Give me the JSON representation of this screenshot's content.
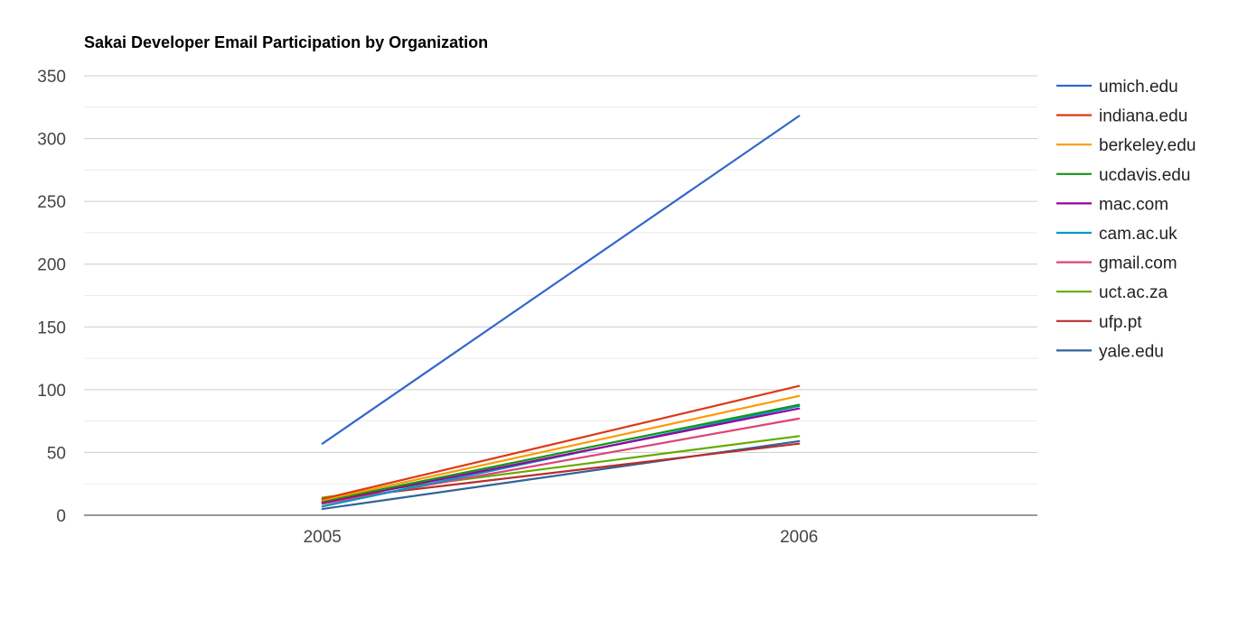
{
  "chart_data": {
    "type": "line",
    "title": "Sakai Developer Email Participation by Organization",
    "xlabel": "",
    "ylabel": "",
    "categories": [
      "2005",
      "2006"
    ],
    "ylim": [
      0,
      350
    ],
    "yticks": [
      0,
      50,
      100,
      150,
      200,
      250,
      300,
      350
    ],
    "grid": true,
    "legend_position": "right",
    "series": [
      {
        "name": "umich.edu",
        "color": "#3366cc",
        "values": [
          57,
          318
        ]
      },
      {
        "name": "indiana.edu",
        "color": "#dc3912",
        "values": [
          13,
          103
        ]
      },
      {
        "name": "berkeley.edu",
        "color": "#ff9900",
        "values": [
          12,
          95
        ]
      },
      {
        "name": "ucdavis.edu",
        "color": "#109618",
        "values": [
          11,
          88
        ]
      },
      {
        "name": "mac.com",
        "color": "#990099",
        "values": [
          10,
          85
        ]
      },
      {
        "name": "cam.ac.uk",
        "color": "#0099c6",
        "values": [
          7,
          87
        ]
      },
      {
        "name": "gmail.com",
        "color": "#dd4477",
        "values": [
          9,
          77
        ]
      },
      {
        "name": "uct.ac.za",
        "color": "#66aa00",
        "values": [
          14,
          63
        ]
      },
      {
        "name": "ufp.pt",
        "color": "#b82e2e",
        "values": [
          12,
          57
        ]
      },
      {
        "name": "yale.edu",
        "color": "#316395",
        "values": [
          5,
          59
        ]
      }
    ]
  }
}
